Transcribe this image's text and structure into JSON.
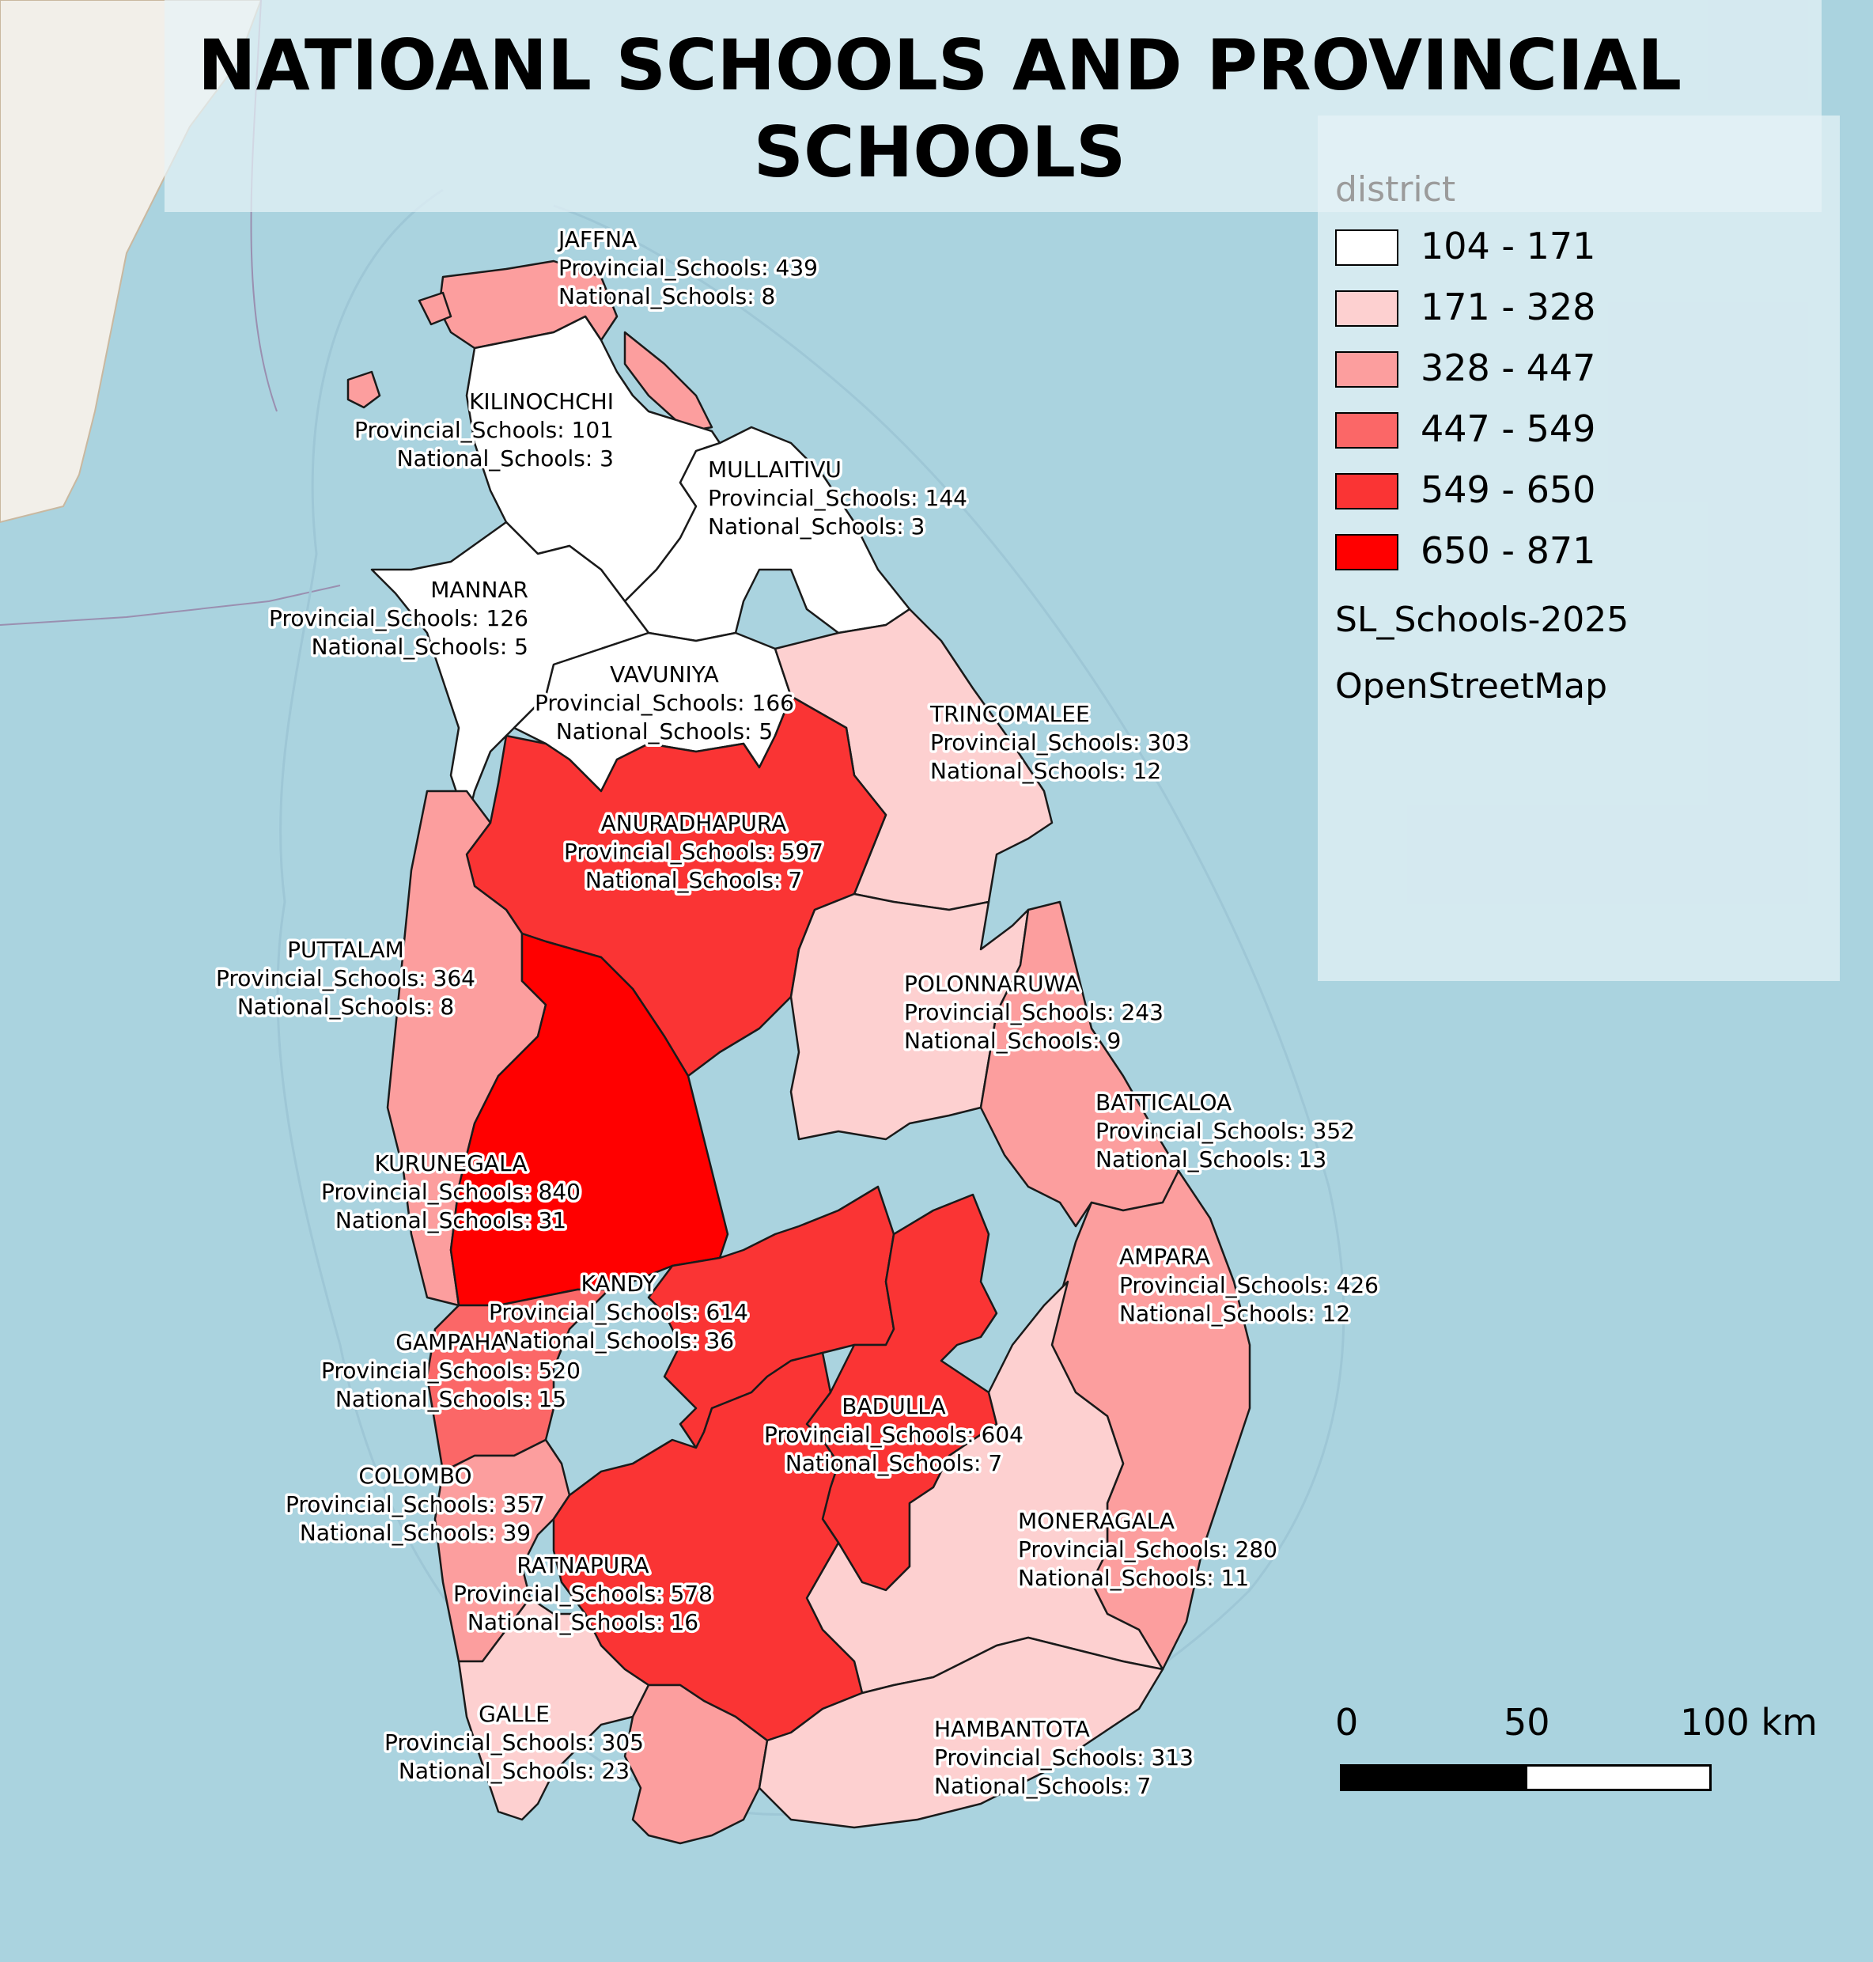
{
  "title": "NATIOANL SCHOOLS AND PROVINCIAL SCHOOLS",
  "legend": {
    "heading": "district",
    "classes": [
      {
        "range": "104 - 171",
        "color": "#ffffff"
      },
      {
        "range": "171 - 328",
        "color": "#fdd0d0"
      },
      {
        "range": "328 - 447",
        "color": "#fc9e9e"
      },
      {
        "range": "447 - 549",
        "color": "#fb6767"
      },
      {
        "range": "549 - 650",
        "color": "#fa3434"
      },
      {
        "range": "650 - 871",
        "color": "#ff0000"
      }
    ],
    "layers": [
      "SL_Schools-2025",
      "OpenStreetMap"
    ]
  },
  "scale_bar": {
    "ticks": [
      "0",
      "50",
      "100 km"
    ]
  },
  "districts": [
    {
      "name": "JAFFNA",
      "provincial": "Provincial_Schools: 439",
      "national": "National_Schools: 8",
      "class": 2
    },
    {
      "name": "KILINOCHCHI",
      "provincial": "Provincial_Schools: 101",
      "national": "National_Schools: 3",
      "class": 0
    },
    {
      "name": "MULLAITIVU",
      "provincial": "Provincial_Schools: 144",
      "national": "National_Schools: 3",
      "class": 0
    },
    {
      "name": "MANNAR",
      "provincial": "Provincial_Schools: 126",
      "national": "National_Schools: 5",
      "class": 0
    },
    {
      "name": "VAVUNIYA",
      "provincial": "Provincial_Schools: 166",
      "national": "National_Schools: 5",
      "class": 0
    },
    {
      "name": "TRINCOMALEE",
      "provincial": "Provincial_Schools: 303",
      "national": "National_Schools: 12",
      "class": 1
    },
    {
      "name": "ANURADHAPURA",
      "provincial": "Provincial_Schools: 597",
      "national": "National_Schools: 7",
      "class": 4
    },
    {
      "name": "PUTTALAM",
      "provincial": "Provincial_Schools: 364",
      "national": "National_Schools: 8",
      "class": 2
    },
    {
      "name": "POLONNARUWA",
      "provincial": "Provincial_Schools: 243",
      "national": "National_Schools: 9",
      "class": 1
    },
    {
      "name": "BATTICALOA",
      "provincial": "Provincial_Schools: 352",
      "national": "National_Schools: 13",
      "class": 2
    },
    {
      "name": "KURUNEGALA",
      "provincial": "Provincial_Schools: 840",
      "national": "National_Schools: 31",
      "class": 5
    },
    {
      "name": "AMPARA",
      "provincial": "Provincial_Schools: 426",
      "national": "National_Schools: 12",
      "class": 2
    },
    {
      "name": "KANDY",
      "provincial": "Provincial_Schools: 614",
      "national": "National_Schools: 36",
      "class": 4
    },
    {
      "name": "GAMPAHA",
      "provincial": "Provincial_Schools: 520",
      "national": "National_Schools: 15",
      "class": 3
    },
    {
      "name": "BADULLA",
      "provincial": "Provincial_Schools: 604",
      "national": "National_Schools: 7",
      "class": 4
    },
    {
      "name": "COLOMBO",
      "provincial": "Provincial_Schools: 357",
      "national": "National_Schools: 39",
      "class": 2
    },
    {
      "name": "MONERAGALA",
      "provincial": "Provincial_Schools: 280",
      "national": "National_Schools: 11",
      "class": 1
    },
    {
      "name": "RATNAPURA",
      "provincial": "Provincial_Schools: 578",
      "national": "National_Schools: 16",
      "class": 4
    },
    {
      "name": "GALLE",
      "provincial": "Provincial_Schools: 305",
      "national": "National_Schools: 23",
      "class": 1
    },
    {
      "name": "HAMBANTOTA",
      "provincial": "Provincial_Schools: 313",
      "national": "National_Schools: 7",
      "class": 1
    }
  ]
}
